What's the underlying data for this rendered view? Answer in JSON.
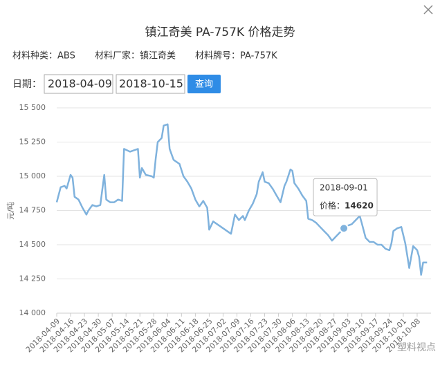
{
  "header": {
    "title": "镇江奇美 PA-757K 价格走势",
    "info": [
      "材料种类：ABS",
      "材料厂家：镇江奇美",
      "材料牌号：PA-757K"
    ]
  },
  "form": {
    "label": "日期：",
    "start": "2018-04-09",
    "end": "2018-10-15",
    "button": "查询"
  },
  "tooltip": {
    "date": "2018-09-01",
    "label": "价格：",
    "value": 14620
  },
  "watermark": "塑料视点",
  "chart_data": {
    "type": "line",
    "y_label": "元/吨",
    "color": "#7fb2dd",
    "grid": true,
    "xlim": [
      "2018-04-09",
      "2018-10-15"
    ],
    "xticks": [
      "2018-04-09",
      "2018-04-16",
      "2018-04-23",
      "2018-04-30",
      "2018-05-07",
      "2018-05-14",
      "2018-05-21",
      "2018-05-28",
      "2018-06-04",
      "2018-06-11",
      "2018-06-18",
      "2018-06-25",
      "2018-07-02",
      "2018-07-09",
      "2018-07-16",
      "2018-07-23",
      "2018-07-30",
      "2018-08-06",
      "2018-08-13",
      "2018-08-20",
      "2018-08-27",
      "2018-09-03",
      "2018-09-10",
      "2018-09-17",
      "2018-09-24",
      "2018-10-01",
      "2018-10-08"
    ],
    "ylim": [
      14000,
      15500
    ],
    "yticks": [
      {
        "value": 14000,
        "label": "14 000"
      },
      {
        "value": 14250,
        "label": "14 250"
      },
      {
        "value": 14500,
        "label": "14 500"
      },
      {
        "value": 14750,
        "label": "14 750"
      },
      {
        "value": 15000,
        "label": "15 000"
      },
      {
        "value": 15250,
        "label": "15 250"
      },
      {
        "value": 15500,
        "label": "15 500"
      }
    ],
    "x": [
      "2018-04-09",
      "2018-04-11",
      "2018-04-13",
      "2018-04-14",
      "2018-04-16",
      "2018-04-17",
      "2018-04-18",
      "2018-04-20",
      "2018-04-22",
      "2018-04-24",
      "2018-04-25",
      "2018-04-27",
      "2018-04-29",
      "2018-05-01",
      "2018-05-02",
      "2018-05-03",
      "2018-05-04",
      "2018-05-06",
      "2018-05-08",
      "2018-05-10",
      "2018-05-12",
      "2018-05-13",
      "2018-05-16",
      "2018-05-18",
      "2018-05-20",
      "2018-05-21",
      "2018-05-22",
      "2018-05-24",
      "2018-05-27",
      "2018-05-28",
      "2018-05-29",
      "2018-05-30",
      "2018-06-01",
      "2018-06-02",
      "2018-06-04",
      "2018-06-05",
      "2018-06-07",
      "2018-06-10",
      "2018-06-12",
      "2018-06-14",
      "2018-06-16",
      "2018-06-18",
      "2018-06-20",
      "2018-06-22",
      "2018-06-24",
      "2018-06-25",
      "2018-06-27",
      "2018-06-29",
      "2018-07-02",
      "2018-07-05",
      "2018-07-06",
      "2018-07-08",
      "2018-07-10",
      "2018-07-12",
      "2018-07-13",
      "2018-07-15",
      "2018-07-17",
      "2018-07-19",
      "2018-07-20",
      "2018-07-22",
      "2018-07-23",
      "2018-07-25",
      "2018-07-27",
      "2018-07-29",
      "2018-07-31",
      "2018-08-02",
      "2018-08-03",
      "2018-08-05",
      "2018-08-06",
      "2018-08-07",
      "2018-08-09",
      "2018-08-11",
      "2018-08-13",
      "2018-08-14",
      "2018-08-16",
      "2018-08-18",
      "2018-08-20",
      "2018-08-22",
      "2018-08-24",
      "2018-08-26",
      "2018-08-28",
      "2018-09-01",
      "2018-09-03",
      "2018-09-05",
      "2018-09-07",
      "2018-09-09",
      "2018-09-10",
      "2018-09-12",
      "2018-09-14",
      "2018-09-16",
      "2018-09-18",
      "2018-09-20",
      "2018-09-22",
      "2018-09-24",
      "2018-09-25",
      "2018-09-26",
      "2018-09-28",
      "2018-09-30",
      "2018-10-02",
      "2018-10-03",
      "2018-10-04",
      "2018-10-06",
      "2018-10-08",
      "2018-10-09",
      "2018-10-10",
      "2018-10-11",
      "2018-10-13"
    ],
    "values": [
      14810,
      14920,
      14930,
      14910,
      15010,
      14990,
      14850,
      14830,
      14770,
      14720,
      14750,
      14790,
      14780,
      14790,
      14900,
      15010,
      14830,
      14810,
      14810,
      14830,
      14820,
      15200,
      15180,
      15190,
      15200,
      14990,
      15060,
      15010,
      15000,
      14990,
      15130,
      15250,
      15280,
      15370,
      15380,
      15200,
      15120,
      15090,
      15000,
      14960,
      14910,
      14830,
      14780,
      14820,
      14770,
      14610,
      14670,
      14650,
      14620,
      14590,
      14580,
      14720,
      14680,
      14710,
      14680,
      14750,
      14800,
      14870,
      14960,
      15030,
      14960,
      14950,
      14910,
      14860,
      14810,
      14930,
      14960,
      15050,
      15040,
      14950,
      14910,
      14860,
      14820,
      14690,
      14680,
      14660,
      14630,
      14600,
      14570,
      14530,
      14560,
      14620,
      14640,
      14650,
      14680,
      14710,
      14660,
      14550,
      14520,
      14520,
      14500,
      14500,
      14470,
      14460,
      14510,
      14600,
      14620,
      14630,
      14510,
      14420,
      14330,
      14490,
      14460,
      14410,
      14280,
      14370,
      14370
    ]
  }
}
